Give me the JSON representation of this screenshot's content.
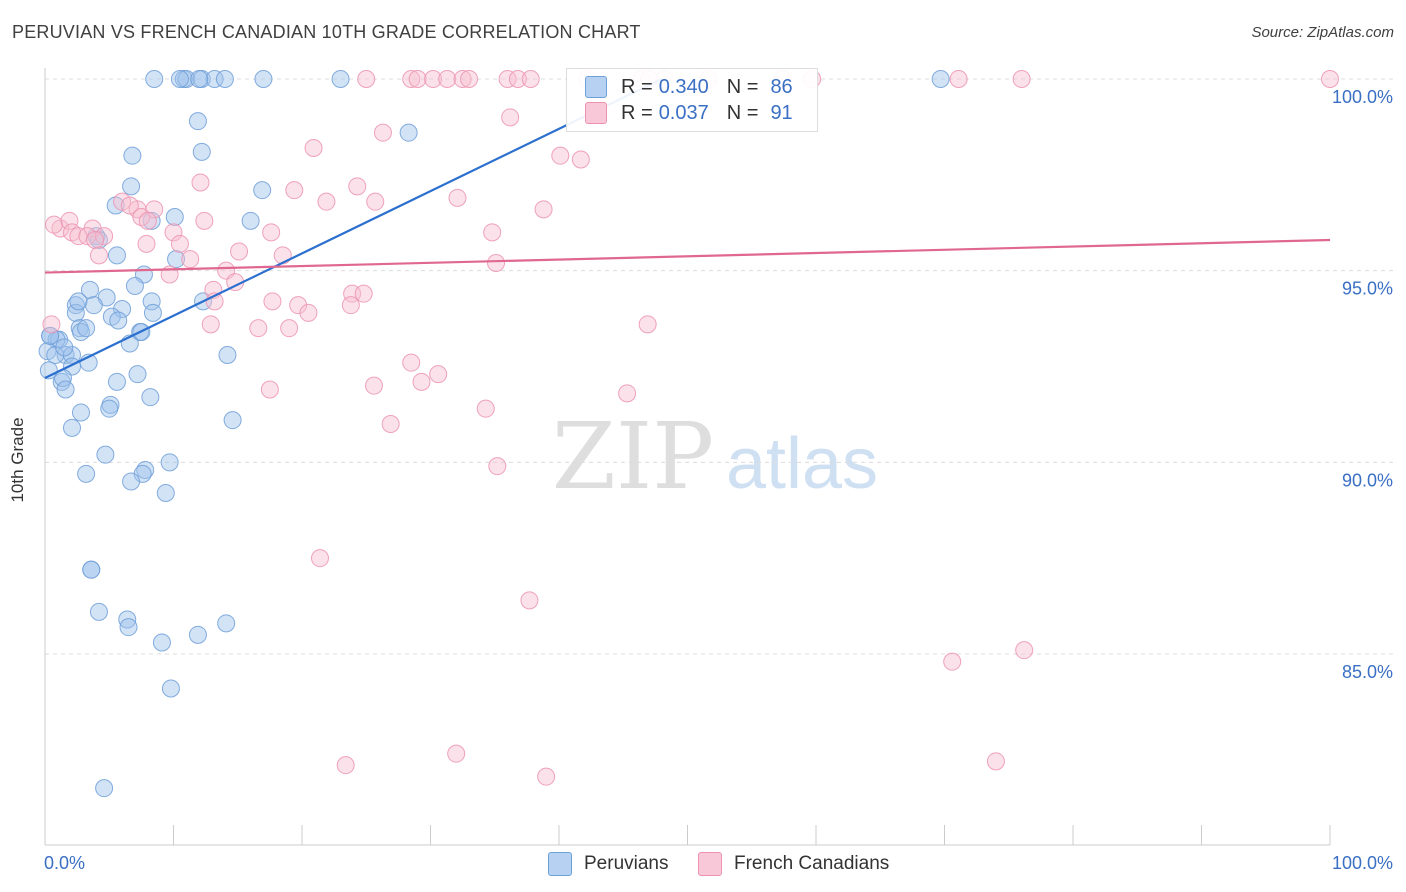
{
  "title": "PERUVIAN VS FRENCH CANADIAN 10TH GRADE CORRELATION CHART",
  "source": "Source: ZipAtlas.com",
  "watermark": {
    "zip": "ZIP",
    "atlas": "atlas"
  },
  "legend_top": [
    {
      "r_label": "R =",
      "r_value": "0.340",
      "n_label": "N =",
      "n_value": "86"
    },
    {
      "r_label": "R =",
      "r_value": "0.037",
      "n_label": "N =",
      "n_value": "91"
    }
  ],
  "legend_bottom": [
    {
      "label": "Peruvians"
    },
    {
      "label": "French Canadians"
    }
  ],
  "colors": {
    "blue_fill": "#9ec1ec",
    "blue_stroke": "#6e9fd8",
    "blue_line": "#2b6fcf",
    "pink_fill": "#f6bfd1",
    "pink_stroke": "#ec93b2",
    "pink_line": "#e0678f",
    "tick_label": "#3a6fc4",
    "grid": "#dcdcdc"
  },
  "chart_data": {
    "type": "scatter",
    "xlabel": "",
    "ylabel": "10th Grade",
    "xlim": [
      0,
      100
    ],
    "ylim": [
      80.2,
      100.8
    ],
    "x_tick_labels": [
      "0.0%",
      "100.0%"
    ],
    "y_ticks": [
      85,
      90,
      95,
      100
    ],
    "y_tick_labels": [
      "85.0%",
      "90.0%",
      "95.0%",
      "100.0%"
    ],
    "series": [
      {
        "name": "Peruvians",
        "r": 0.34,
        "n": 86,
        "trend": {
          "x": [
            0,
            48
          ],
          "y": [
            92.2,
            100.0
          ]
        },
        "points": [
          [
            8.5,
            100
          ],
          [
            10.8,
            100
          ],
          [
            11,
            100
          ],
          [
            12.2,
            100
          ],
          [
            13.2,
            100
          ],
          [
            14,
            100
          ],
          [
            17,
            100
          ],
          [
            23,
            100
          ],
          [
            69.7,
            100
          ],
          [
            11.9,
            98.9
          ],
          [
            28.3,
            98.6
          ],
          [
            6.8,
            98.0
          ],
          [
            12.2,
            98.1
          ],
          [
            6.7,
            97.2
          ],
          [
            16.9,
            97.1
          ],
          [
            5.5,
            96.7
          ],
          [
            8.3,
            96.3
          ],
          [
            16,
            96.3
          ],
          [
            10.1,
            96.4
          ],
          [
            4,
            95.9
          ],
          [
            4.2,
            95.8
          ],
          [
            5.6,
            95.4
          ],
          [
            10.2,
            95.3
          ],
          [
            7.7,
            94.9
          ],
          [
            12.3,
            94.2
          ],
          [
            3.5,
            94.5
          ],
          [
            7,
            94.6
          ],
          [
            4.8,
            94.3
          ],
          [
            2.4,
            94.1
          ],
          [
            3.8,
            94.1
          ],
          [
            8.3,
            94.2
          ],
          [
            6,
            94.0
          ],
          [
            8.4,
            93.9
          ],
          [
            2.4,
            93.9
          ],
          [
            5.2,
            93.8
          ],
          [
            5.7,
            93.7
          ],
          [
            2.7,
            93.5
          ],
          [
            7.4,
            93.4
          ],
          [
            7.5,
            93.4
          ],
          [
            0.4,
            93.3
          ],
          [
            1.1,
            93.2
          ],
          [
            0.9,
            93.2
          ],
          [
            2.8,
            93.4
          ],
          [
            6.6,
            93.1
          ],
          [
            0.2,
            92.9
          ],
          [
            1.6,
            92.8
          ],
          [
            0.8,
            92.8
          ],
          [
            2.1,
            92.8
          ],
          [
            14.2,
            92.8
          ],
          [
            3.4,
            92.6
          ],
          [
            2.1,
            92.5
          ],
          [
            7.2,
            92.3
          ],
          [
            5.6,
            92.1
          ],
          [
            1.3,
            92.1
          ],
          [
            1.4,
            92.2
          ],
          [
            1.6,
            91.9
          ],
          [
            8.2,
            91.7
          ],
          [
            5.1,
            91.5
          ],
          [
            5,
            91.4
          ],
          [
            2.8,
            91.3
          ],
          [
            14.6,
            91.1
          ],
          [
            2.1,
            90.9
          ],
          [
            4.7,
            90.2
          ],
          [
            9.7,
            90.0
          ],
          [
            7.8,
            89.8
          ],
          [
            7.6,
            89.7
          ],
          [
            3.2,
            89.7
          ],
          [
            6.7,
            89.5
          ],
          [
            9.4,
            89.2
          ],
          [
            3.6,
            87.2
          ],
          [
            3.6,
            87.2
          ],
          [
            4.2,
            86.1
          ],
          [
            6.4,
            85.9
          ],
          [
            14.1,
            85.8
          ],
          [
            6.5,
            85.7
          ],
          [
            11.9,
            85.5
          ],
          [
            9.1,
            85.3
          ],
          [
            9.8,
            84.1
          ],
          [
            4.6,
            81.5
          ],
          [
            0.4,
            93.3
          ],
          [
            1.5,
            93.0
          ],
          [
            12,
            100
          ],
          [
            10.5,
            100
          ],
          [
            3.2,
            93.5
          ],
          [
            0.3,
            92.4
          ],
          [
            2.6,
            94.2
          ]
        ]
      },
      {
        "name": "French Canadians",
        "r": 0.037,
        "n": 91,
        "trend": {
          "x": [
            0,
            100
          ],
          "y": [
            94.95,
            95.8
          ]
        },
        "points": [
          [
            25,
            100
          ],
          [
            28.5,
            100
          ],
          [
            29,
            100
          ],
          [
            30.2,
            100
          ],
          [
            31.3,
            100
          ],
          [
            32.5,
            100
          ],
          [
            33,
            100
          ],
          [
            36,
            100
          ],
          [
            36.8,
            100
          ],
          [
            37.8,
            100
          ],
          [
            42.2,
            100
          ],
          [
            46.4,
            100
          ],
          [
            47,
            100
          ],
          [
            48.2,
            100
          ],
          [
            51.6,
            100
          ],
          [
            57.4,
            100
          ],
          [
            59.7,
            100
          ],
          [
            71.1,
            100
          ],
          [
            76,
            100
          ],
          [
            100,
            100
          ],
          [
            36.2,
            99.0
          ],
          [
            26.3,
            98.6
          ],
          [
            20.9,
            98.2
          ],
          [
            40.1,
            98.0
          ],
          [
            41.7,
            97.9
          ],
          [
            12.1,
            97.3
          ],
          [
            19.4,
            97.1
          ],
          [
            24.3,
            97.2
          ],
          [
            32.1,
            96.9
          ],
          [
            6,
            96.8
          ],
          [
            21.9,
            96.8
          ],
          [
            25.7,
            96.8
          ],
          [
            38.8,
            96.6
          ],
          [
            7.2,
            96.6
          ],
          [
            6.6,
            96.7
          ],
          [
            8.5,
            96.6
          ],
          [
            1.2,
            96.1
          ],
          [
            3.7,
            96.1
          ],
          [
            0.7,
            96.2
          ],
          [
            1.9,
            96.3
          ],
          [
            7.5,
            96.4
          ],
          [
            8,
            96.3
          ],
          [
            12.4,
            96.3
          ],
          [
            2.1,
            96.0
          ],
          [
            2.6,
            95.9
          ],
          [
            10,
            96.0
          ],
          [
            17.6,
            96.0
          ],
          [
            3.3,
            95.9
          ],
          [
            4.6,
            95.9
          ],
          [
            3.9,
            95.8
          ],
          [
            34.8,
            96.0
          ],
          [
            7.9,
            95.7
          ],
          [
            10.5,
            95.7
          ],
          [
            15.1,
            95.5
          ],
          [
            18.5,
            95.4
          ],
          [
            4.2,
            95.4
          ],
          [
            11.3,
            95.3
          ],
          [
            35.1,
            95.2
          ],
          [
            14.1,
            95.0
          ],
          [
            9.7,
            94.9
          ],
          [
            23.9,
            94.4
          ],
          [
            24.8,
            94.4
          ],
          [
            14.8,
            94.7
          ],
          [
            13.1,
            94.5
          ],
          [
            17.7,
            94.2
          ],
          [
            13.2,
            94.2
          ],
          [
            19.7,
            94.1
          ],
          [
            20.5,
            93.9
          ],
          [
            23.8,
            94.1
          ],
          [
            12.9,
            93.6
          ],
          [
            46.9,
            93.6
          ],
          [
            16.6,
            93.5
          ],
          [
            19,
            93.5
          ],
          [
            28.5,
            92.6
          ],
          [
            30.6,
            92.3
          ],
          [
            29.3,
            92.1
          ],
          [
            25.6,
            92.0
          ],
          [
            17.5,
            91.9
          ],
          [
            45.3,
            91.8
          ],
          [
            34.3,
            91.4
          ],
          [
            26.9,
            91.0
          ],
          [
            35.2,
            89.9
          ],
          [
            21.4,
            87.5
          ],
          [
            37.7,
            86.4
          ],
          [
            76.2,
            85.1
          ],
          [
            70.6,
            84.8
          ],
          [
            32,
            82.4
          ],
          [
            23.4,
            82.1
          ],
          [
            39,
            81.8
          ],
          [
            74,
            82.2
          ],
          [
            0.5,
            93.6
          ]
        ]
      }
    ]
  }
}
